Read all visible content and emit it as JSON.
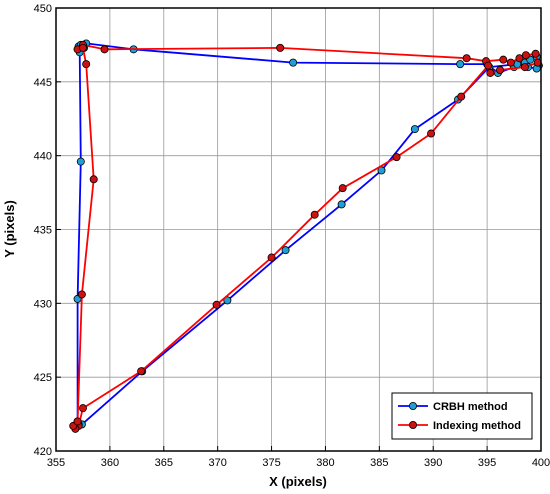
{
  "chart_data": {
    "type": "line",
    "title": "",
    "xlabel": "X (pixels)",
    "ylabel": "Y (pixels)",
    "xlim": [
      355,
      400
    ],
    "ylim": [
      420,
      450
    ],
    "xticks": [
      "355",
      "360",
      "365",
      "370",
      "375",
      "380",
      "385",
      "390",
      "395",
      "400"
    ],
    "yticks": [
      "420",
      "425",
      "430",
      "435",
      "440",
      "445",
      "450"
    ],
    "grid": true,
    "legend_position": "bottom-right",
    "series": [
      {
        "name": "CRBH method",
        "color": "#0000ff",
        "marker_color": "#1f9fd6",
        "points": [
          [
            357.1,
            447.4
          ],
          [
            357.3,
            447.5
          ],
          [
            357.6,
            447.3
          ],
          [
            357.8,
            447.6
          ],
          [
            362.2,
            447.2
          ],
          [
            377.0,
            446.3
          ],
          [
            392.5,
            446.2
          ],
          [
            395.0,
            446.2
          ],
          [
            396.0,
            445.6
          ],
          [
            397.5,
            446.0
          ],
          [
            398.5,
            446.3
          ],
          [
            399.0,
            446.5
          ],
          [
            399.6,
            446.7
          ],
          [
            399.8,
            446.1
          ],
          [
            399.6,
            445.9
          ],
          [
            398.8,
            446.0
          ],
          [
            397.8,
            446.2
          ],
          [
            395.2,
            446.0
          ],
          [
            392.3,
            443.8
          ],
          [
            388.3,
            441.8
          ],
          [
            385.2,
            439.0
          ],
          [
            381.5,
            436.7
          ],
          [
            376.3,
            433.6
          ],
          [
            370.9,
            430.2
          ],
          [
            363.0,
            425.4
          ],
          [
            357.4,
            421.8
          ],
          [
            357.1,
            421.8
          ],
          [
            357.0,
            422.0
          ],
          [
            357.0,
            430.3
          ],
          [
            357.3,
            439.6
          ],
          [
            357.2,
            447.0
          ]
        ]
      },
      {
        "name": "Indexing method",
        "color": "#ff0000",
        "marker_color": "#cc1111",
        "points": [
          [
            357.0,
            447.2
          ],
          [
            357.5,
            447.5
          ],
          [
            359.5,
            447.2
          ],
          [
            375.8,
            447.3
          ],
          [
            393.1,
            446.6
          ],
          [
            394.9,
            446.4
          ],
          [
            396.5,
            446.5
          ],
          [
            397.2,
            446.3
          ],
          [
            398.0,
            446.6
          ],
          [
            398.6,
            446.8
          ],
          [
            399.5,
            446.9
          ],
          [
            399.7,
            446.3
          ],
          [
            398.5,
            446.0
          ],
          [
            396.2,
            445.8
          ],
          [
            395.3,
            445.6
          ],
          [
            395.1,
            446.1
          ],
          [
            392.6,
            444.0
          ],
          [
            389.8,
            441.5
          ],
          [
            386.6,
            439.9
          ],
          [
            381.6,
            437.8
          ],
          [
            379.0,
            436.0
          ],
          [
            375.0,
            433.1
          ],
          [
            369.9,
            429.9
          ],
          [
            362.9,
            425.4
          ],
          [
            357.5,
            422.9
          ],
          [
            357.1,
            421.7
          ],
          [
            356.8,
            421.5
          ],
          [
            356.6,
            421.7
          ],
          [
            357.0,
            422.0
          ],
          [
            357.4,
            430.6
          ],
          [
            358.5,
            438.4
          ],
          [
            357.8,
            446.2
          ],
          [
            357.5,
            447.3
          ]
        ]
      }
    ]
  }
}
